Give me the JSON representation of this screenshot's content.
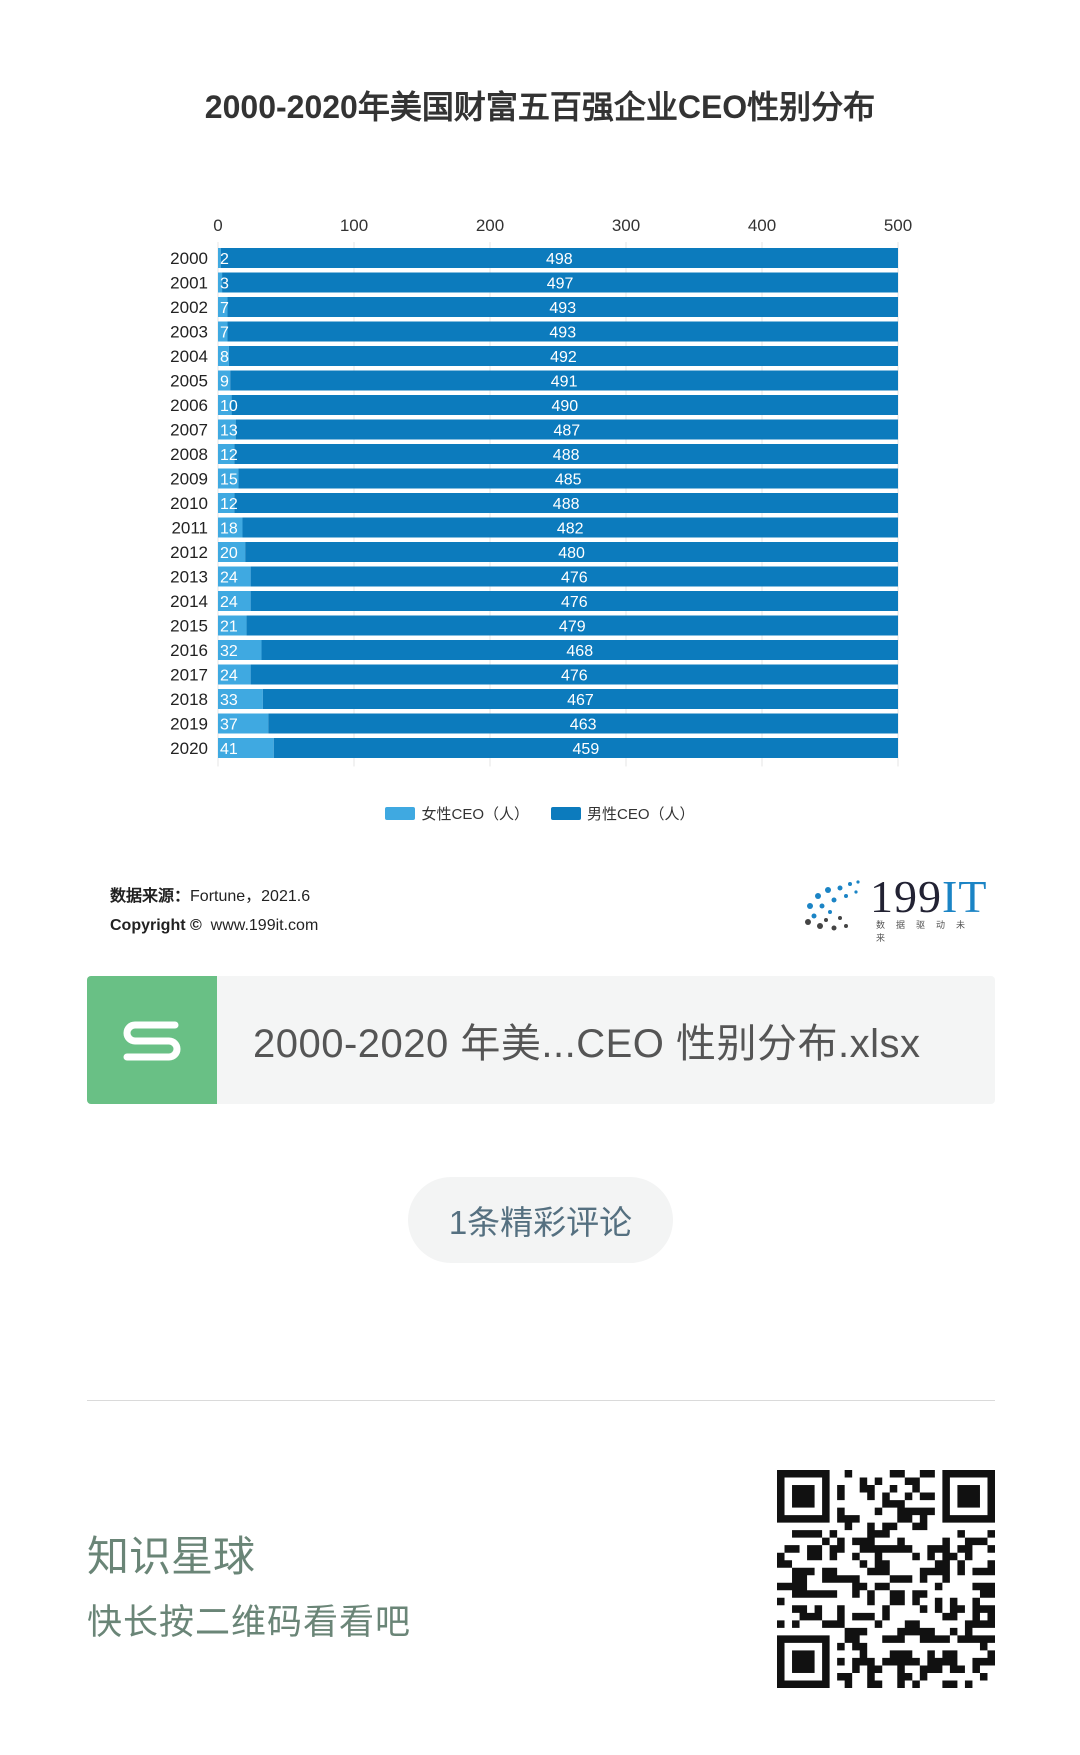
{
  "chart_data": {
    "type": "bar",
    "orientation": "horizontal",
    "stacked": true,
    "title": "2000-2020年美国财富五百强企业CEO性别分布",
    "categories": [
      "2000",
      "2001",
      "2002",
      "2003",
      "2004",
      "2005",
      "2006",
      "2007",
      "2008",
      "2009",
      "2010",
      "2011",
      "2012",
      "2013",
      "2014",
      "2015",
      "2016",
      "2017",
      "2018",
      "2019",
      "2020"
    ],
    "series": [
      {
        "name": "女性CEO（人）",
        "color": "#3fa9e1",
        "values": [
          2,
          3,
          7,
          7,
          8,
          9,
          10,
          13,
          12,
          15,
          12,
          18,
          20,
          24,
          24,
          21,
          32,
          24,
          33,
          37,
          41
        ]
      },
      {
        "name": "男性CEO（人）",
        "color": "#0c7bbd",
        "values": [
          498,
          497,
          493,
          493,
          492,
          491,
          490,
          487,
          488,
          485,
          488,
          482,
          480,
          476,
          476,
          479,
          468,
          476,
          467,
          463,
          459
        ]
      }
    ],
    "x_ticks": [
      "0",
      "100",
      "200",
      "300",
      "400",
      "500"
    ],
    "xlim": [
      0,
      500
    ],
    "legend_position": "bottom",
    "grid": true,
    "axis_position": "top"
  },
  "source": {
    "label": "数据来源：",
    "text": "Fortune，2021.6",
    "copyright_label": "Copyright ©",
    "website": "www.199it.com"
  },
  "brand": {
    "name_prefix": "199",
    "name_suffix": "IT",
    "tagline": "数据驱动未来"
  },
  "file": {
    "icon_letter": "S",
    "name": "2000-2020 年美...CEO 性别分布.xlsx"
  },
  "comments": {
    "label": "1条精彩评论"
  },
  "planet": {
    "title": "知识星球",
    "subtitle": "快长按二维码看看吧"
  },
  "colors": {
    "female": "#3fa9e1",
    "male": "#0c7bbd",
    "file_icon": "#69c085",
    "planet_text": "#6a8577"
  }
}
